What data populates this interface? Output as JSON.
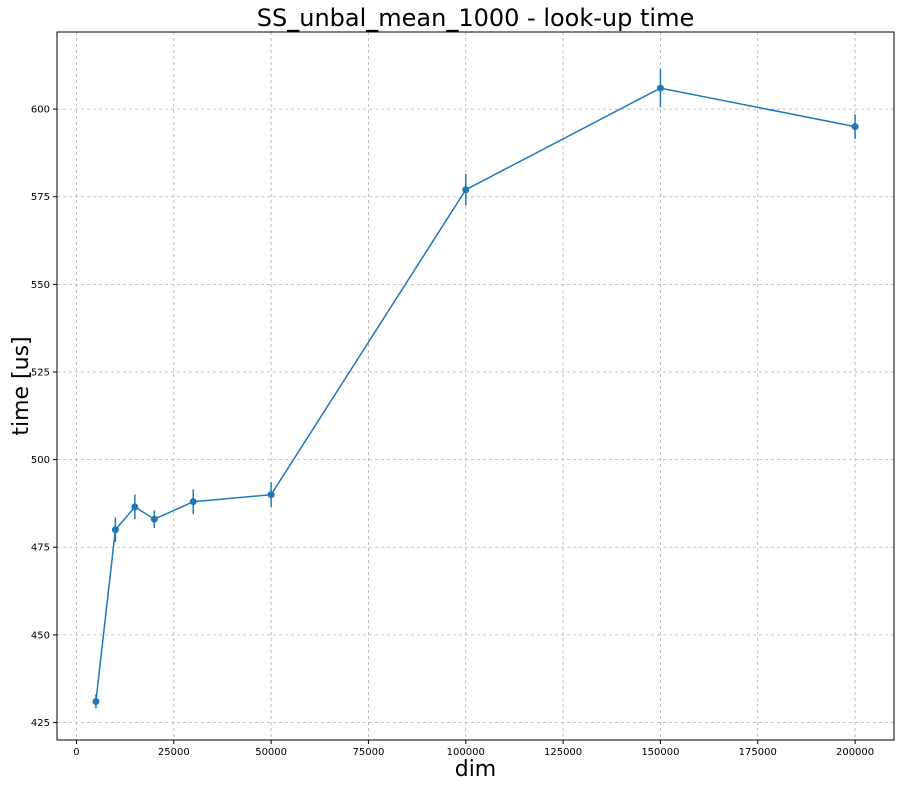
{
  "chart_data": {
    "type": "line",
    "title": "SS_unbal_mean_1000 - look-up time",
    "xlabel": "dim",
    "ylabel": "time [us]",
    "xlim": [
      -5000,
      210000
    ],
    "ylim": [
      420,
      622
    ],
    "grid": true,
    "x_ticks": [
      0,
      25000,
      50000,
      75000,
      100000,
      125000,
      150000,
      175000,
      200000
    ],
    "y_ticks": [
      425,
      450,
      475,
      500,
      525,
      550,
      575,
      600
    ],
    "series": [
      {
        "color": "#1f77b4",
        "x": [
          5000,
          10000,
          15000,
          20000,
          30000,
          50000,
          100000,
          150000,
          200000
        ],
        "y": [
          431,
          480,
          486.5,
          483,
          488,
          490,
          577,
          606,
          595
        ],
        "yerr": [
          2,
          3.5,
          3.5,
          2.5,
          3.5,
          3.5,
          4.5,
          5.5,
          3.5
        ]
      }
    ]
  }
}
